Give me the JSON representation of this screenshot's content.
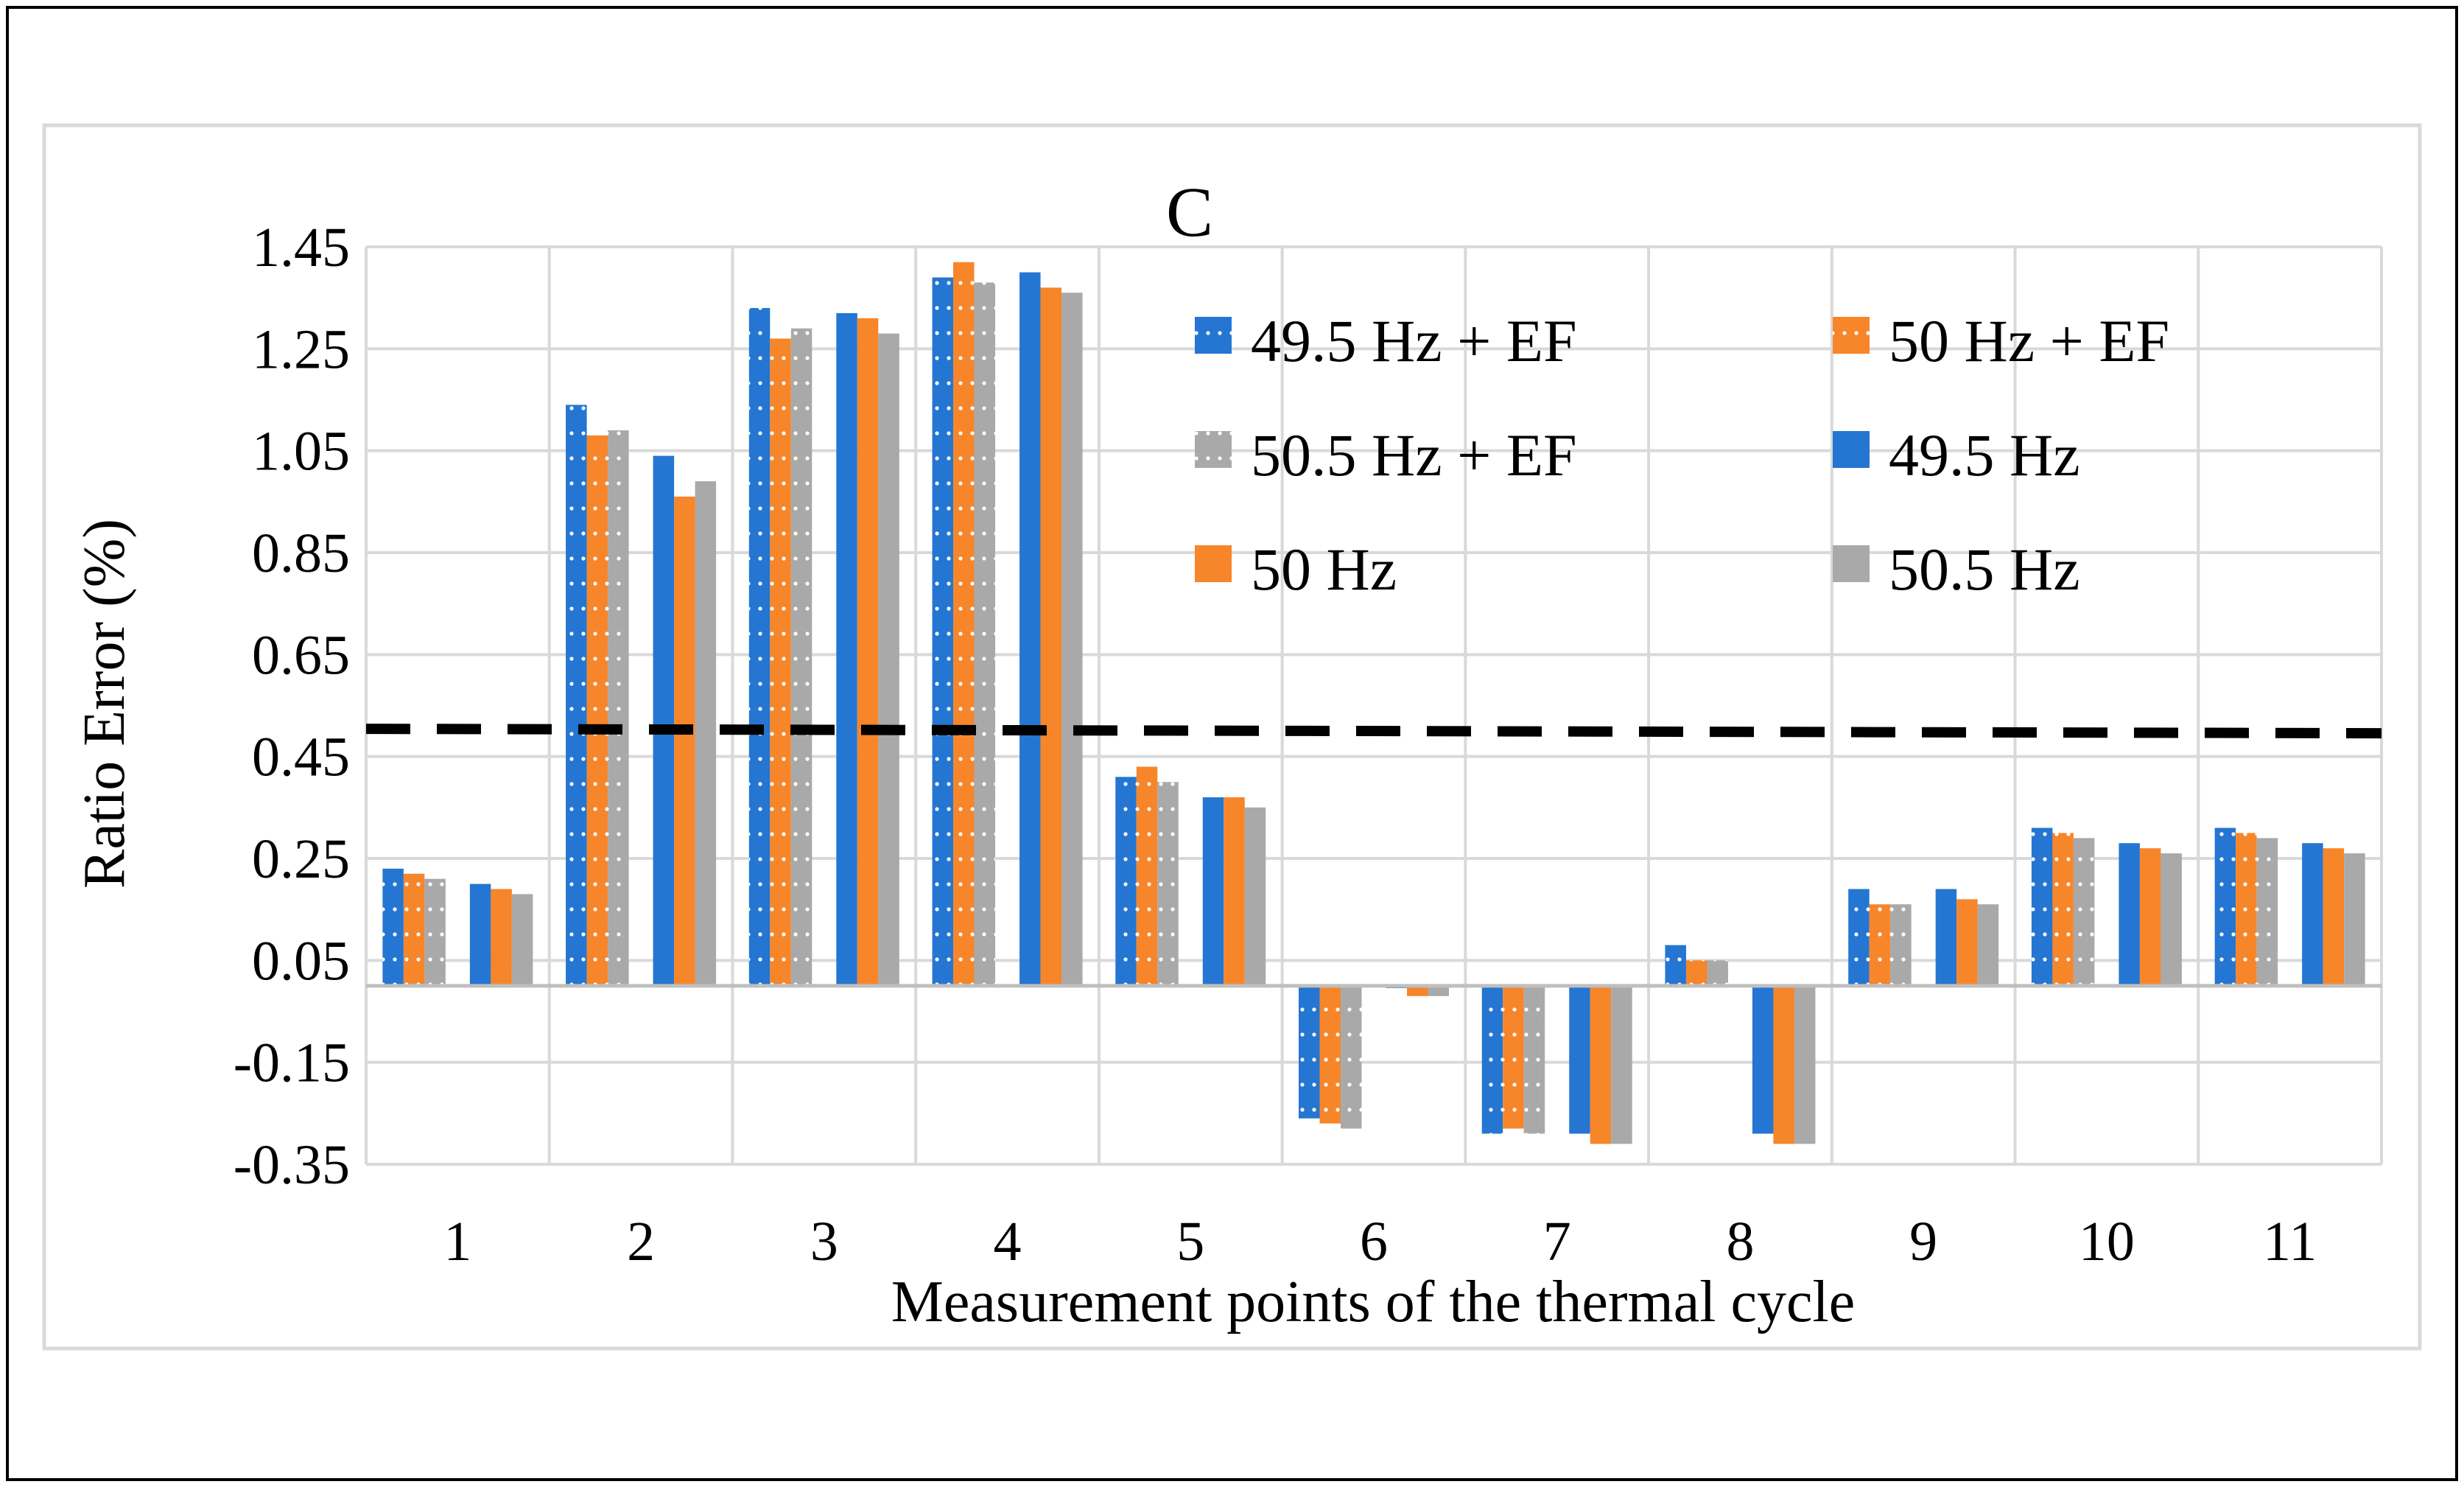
{
  "chart_data": {
    "type": "bar",
    "title": "C",
    "xlabel": "Measurement points of the thermal cycle",
    "ylabel": "Ratio Error (%)",
    "ylim": [
      -0.35,
      1.45
    ],
    "yticks": [
      "1.45",
      "1.25",
      "1.05",
      "0.85",
      "0.65",
      "0.45",
      "0.25",
      "0.05",
      "-0.15",
      "-0.35"
    ],
    "categories": [
      "1",
      "2",
      "3",
      "4",
      "5",
      "6",
      "7",
      "8",
      "9",
      "10",
      "11"
    ],
    "threshold": 0.5,
    "grid": true,
    "legend_position": "top-right",
    "series": [
      {
        "name": "49.5 Hz + EF",
        "color": "#2476d2",
        "pattern": "dots",
        "values": [
          0.23,
          1.14,
          1.33,
          1.39,
          0.41,
          -0.26,
          -0.29,
          0.08,
          0.19,
          0.31,
          0.31
        ]
      },
      {
        "name": "50 Hz + EF",
        "color": "#f7852a",
        "pattern": "dots",
        "values": [
          0.22,
          1.08,
          1.27,
          1.42,
          0.43,
          -0.27,
          -0.28,
          0.05,
          0.16,
          0.3,
          0.3
        ]
      },
      {
        "name": "50.5 Hz + EF",
        "color": "#a9a9a9",
        "pattern": "dots",
        "values": [
          0.21,
          1.09,
          1.29,
          1.38,
          0.4,
          -0.28,
          -0.29,
          0.05,
          0.16,
          0.29,
          0.29
        ]
      },
      {
        "name": "49.5 Hz",
        "color": "#2476d2",
        "pattern": "solid",
        "values": [
          0.2,
          1.04,
          1.32,
          1.4,
          0.37,
          0.0,
          -0.29,
          -0.29,
          0.19,
          0.28,
          0.28
        ]
      },
      {
        "name": "50 Hz",
        "color": "#f7852a",
        "pattern": "solid",
        "values": [
          0.19,
          0.96,
          1.31,
          1.37,
          0.37,
          -0.02,
          -0.31,
          -0.31,
          0.17,
          0.27,
          0.27
        ]
      },
      {
        "name": "50.5 Hz",
        "color": "#a9a9a9",
        "pattern": "solid",
        "values": [
          0.18,
          0.99,
          1.28,
          1.36,
          0.35,
          -0.02,
          -0.31,
          -0.31,
          0.16,
          0.26,
          0.26
        ]
      }
    ]
  }
}
